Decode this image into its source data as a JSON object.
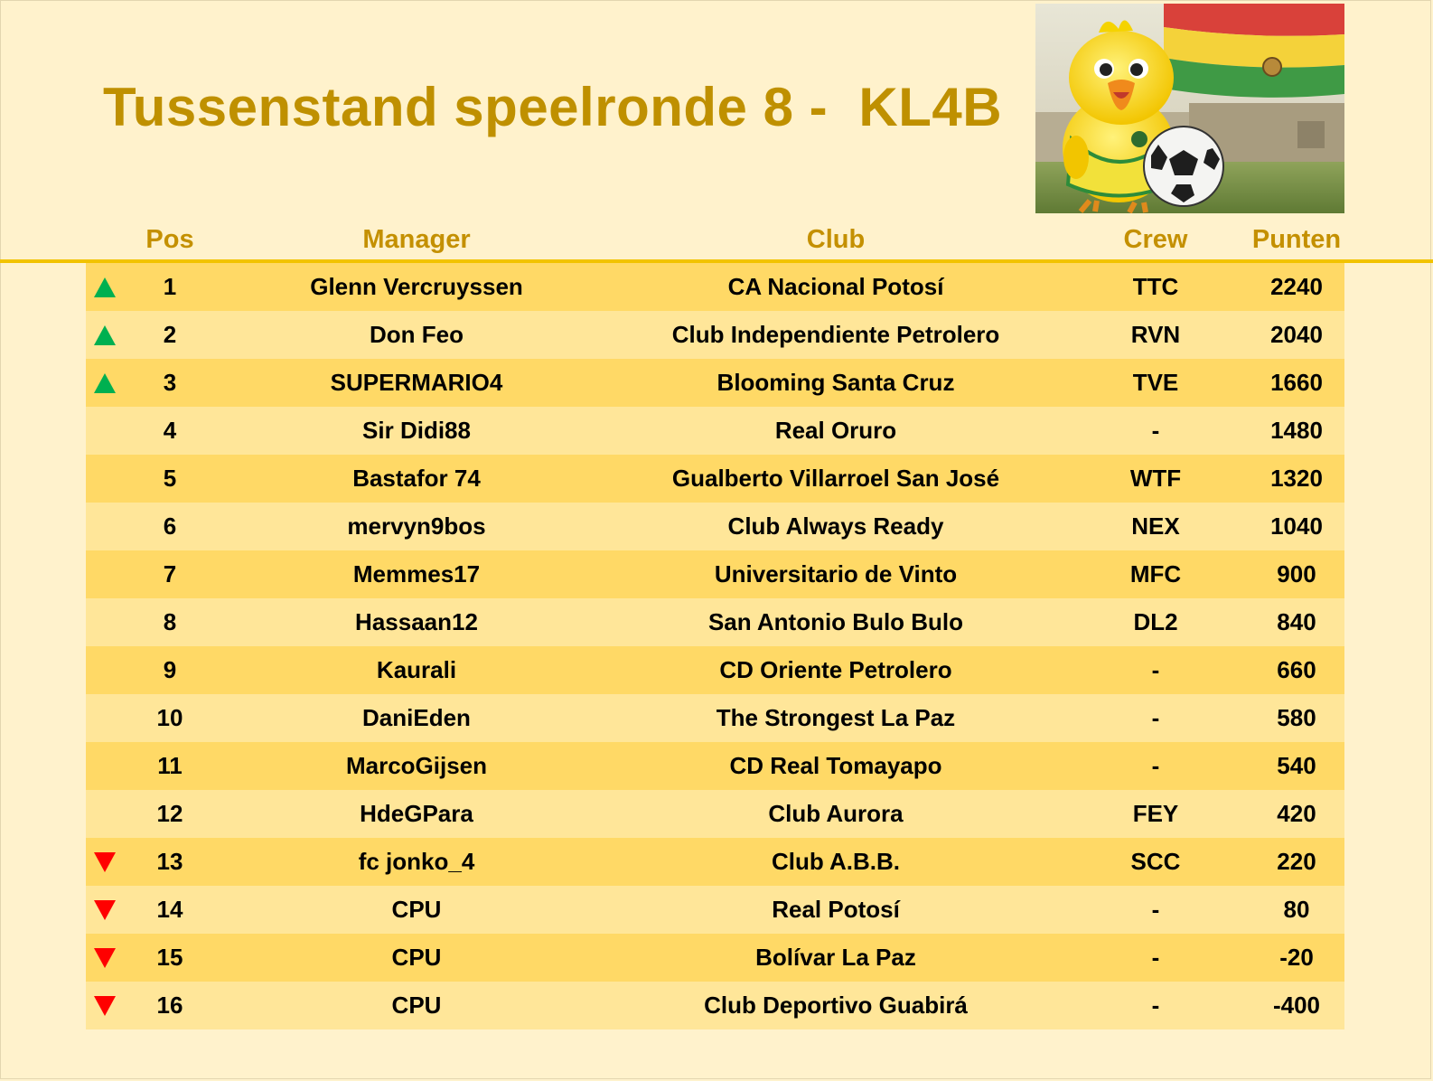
{
  "title": "Tussenstand speelronde 8 -  KL4B",
  "colors": {
    "background": "#fff2cc",
    "title": "#bf9000",
    "header_text": "#c49000",
    "header_rule": "#f2c300",
    "row_odd": "#ffd966",
    "row_even": "#ffe699",
    "trend_up": "#00b050",
    "trend_down": "#ff0000"
  },
  "image": {
    "name": "mascot-illustration",
    "description_icon": "yellow-bird-mascot-with-soccer-ball-and-bolivian-flag"
  },
  "columns": {
    "pos": "Pos",
    "manager": "Manager",
    "club": "Club",
    "crew": "Crew",
    "points": "Punten"
  },
  "rows": [
    {
      "trend": "up",
      "pos": "1",
      "manager": "Glenn Vercruyssen",
      "club": "CA Nacional Potosí",
      "crew": "TTC",
      "points": "2240"
    },
    {
      "trend": "up",
      "pos": "2",
      "manager": "Don Feo",
      "club": "Club Independiente Petrolero",
      "crew": "RVN",
      "points": "2040"
    },
    {
      "trend": "up",
      "pos": "3",
      "manager": "SUPERMARIO4",
      "club": "Blooming Santa Cruz",
      "crew": "TVE",
      "points": "1660"
    },
    {
      "trend": "none",
      "pos": "4",
      "manager": "Sir Didi88",
      "club": "Real Oruro",
      "crew": "-",
      "points": "1480"
    },
    {
      "trend": "none",
      "pos": "5",
      "manager": "Bastafor 74",
      "club": "Gualberto Villarroel San José",
      "crew": "WTF",
      "points": "1320"
    },
    {
      "trend": "none",
      "pos": "6",
      "manager": "mervyn9bos",
      "club": "Club Always Ready",
      "crew": "NEX",
      "points": "1040"
    },
    {
      "trend": "none",
      "pos": "7",
      "manager": "Memmes17",
      "club": "Universitario de Vinto",
      "crew": "MFC",
      "points": "900"
    },
    {
      "trend": "none",
      "pos": "8",
      "manager": "Hassaan12",
      "club": "San Antonio Bulo Bulo",
      "crew": "DL2",
      "points": "840"
    },
    {
      "trend": "none",
      "pos": "9",
      "manager": "Kaurali",
      "club": "CD Oriente Petrolero",
      "crew": "-",
      "points": "660"
    },
    {
      "trend": "none",
      "pos": "10",
      "manager": "DaniEden",
      "club": "The Strongest La Paz",
      "crew": "-",
      "points": "580"
    },
    {
      "trend": "none",
      "pos": "11",
      "manager": "MarcoGijsen",
      "club": "CD Real Tomayapo",
      "crew": "-",
      "points": "540"
    },
    {
      "trend": "none",
      "pos": "12",
      "manager": "HdeGPara",
      "club": "Club Aurora",
      "crew": "FEY",
      "points": "420"
    },
    {
      "trend": "down",
      "pos": "13",
      "manager": "fc jonko_4",
      "club": "Club A.B.B.",
      "crew": "SCC",
      "points": "220"
    },
    {
      "trend": "down",
      "pos": "14",
      "manager": "CPU",
      "club": "Real Potosí",
      "crew": "-",
      "points": "80"
    },
    {
      "trend": "down",
      "pos": "15",
      "manager": "CPU",
      "club": "Bolívar La Paz",
      "crew": "-",
      "points": "-20"
    },
    {
      "trend": "down",
      "pos": "16",
      "manager": "CPU",
      "club": "Club Deportivo Guabirá",
      "crew": "-",
      "points": "-400"
    }
  ]
}
